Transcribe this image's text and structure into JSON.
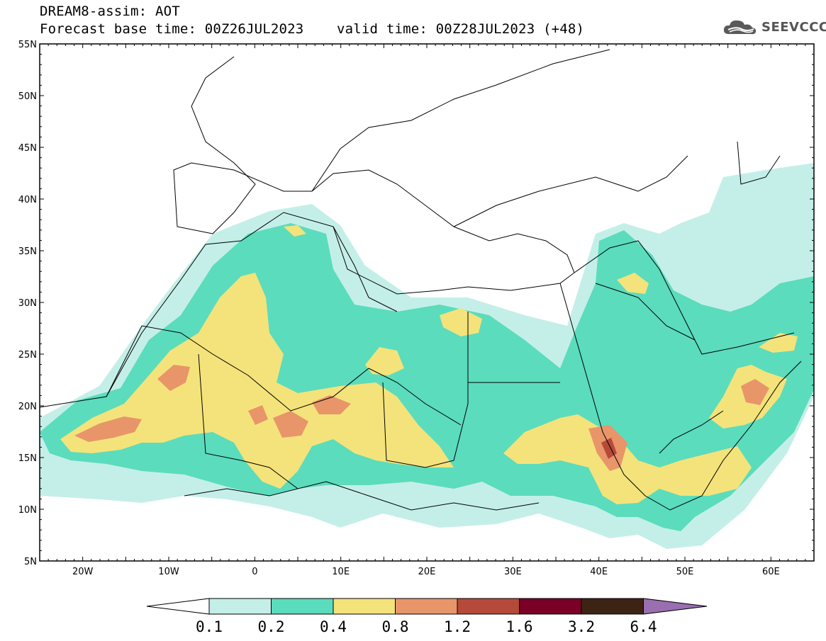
{
  "header": {
    "line1": "DREAM8-assim: AOT",
    "line2": "Forecast base time: 00Z26JUL2023    valid time: 00Z28JUL2023 (+48)"
  },
  "logo": {
    "text": "SEEVCCC",
    "icon": "cloud-icon"
  },
  "map": {
    "lon_range": [
      -25,
      65
    ],
    "lat_range": [
      5,
      55
    ],
    "lat_ticks": [
      "55N",
      "50N",
      "45N",
      "40N",
      "35N",
      "30N",
      "25N",
      "20N",
      "15N",
      "10N",
      "5N"
    ],
    "lon_ticks": [
      "20W",
      "10W",
      "0",
      "10E",
      "20E",
      "30E",
      "40E",
      "50E",
      "60E"
    ]
  },
  "colorbar": {
    "levels": [
      "0.1",
      "0.2",
      "0.4",
      "0.8",
      "1.2",
      "1.6",
      "3.2",
      "6.4"
    ],
    "colors": [
      "#ffffff",
      "#c4efe8",
      "#5bdcbc",
      "#f4e37b",
      "#e8956a",
      "#b54a3a",
      "#7a0026",
      "#3d2314",
      "#9a6fb0"
    ]
  }
}
